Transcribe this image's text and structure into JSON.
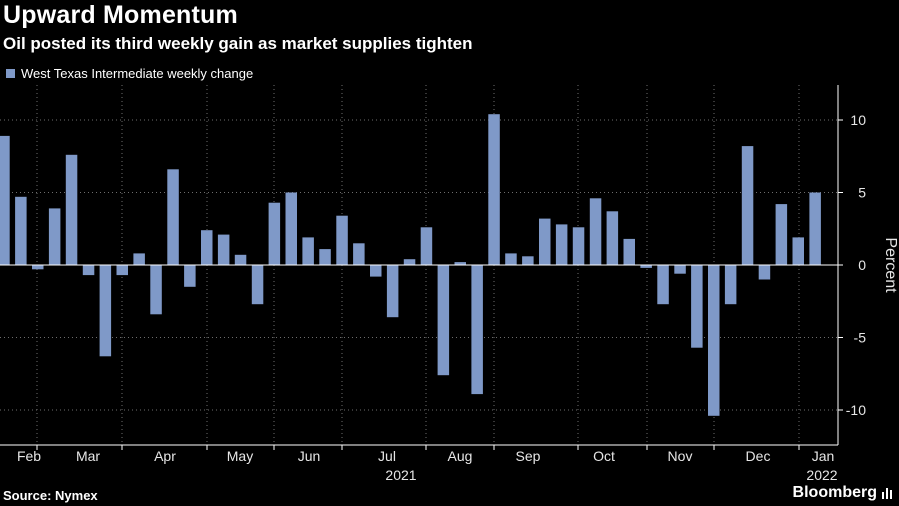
{
  "title": "Upward Momentum",
  "subtitle": "Oil posted its third weekly gain as market supplies tighten",
  "source": "Source: Nymex",
  "brand": "Bloomberg",
  "colors": {
    "bar": "#7f99c8",
    "background": "#000000",
    "grid": "#6e6e6e"
  },
  "chart_data": {
    "type": "bar",
    "series": [
      {
        "name": "West Texas Intermediate weekly change",
        "values": [
          8.9,
          4.7,
          -0.3,
          3.9,
          7.6,
          -0.7,
          -6.3,
          -0.7,
          0.8,
          -3.4,
          6.6,
          -1.5,
          2.4,
          2.1,
          0.7,
          -2.7,
          4.3,
          5.0,
          1.9,
          1.1,
          3.4,
          1.5,
          -0.8,
          -3.6,
          0.4,
          2.6,
          -7.6,
          0.2,
          -8.9,
          10.4,
          0.8,
          0.6,
          3.2,
          2.8,
          2.6,
          4.6,
          3.7,
          1.8,
          -0.2,
          -2.7,
          -0.6,
          -5.7,
          -10.4,
          -2.7,
          8.2,
          -1.0,
          4.2,
          1.9,
          5.0
        ]
      }
    ],
    "month_ticks": [
      "Feb",
      "Mar",
      "Apr",
      "May",
      "Jun",
      "Jul",
      "Aug",
      "Sep",
      "Oct",
      "Nov",
      "Dec",
      "Jan"
    ],
    "year_labels": [
      "2021",
      "2022"
    ],
    "ylabel": "Percent",
    "y_ticks": [
      10,
      5,
      0,
      -5,
      -10
    ],
    "y_tick_labels": [
      "10",
      "5",
      "0",
      "-5",
      "-10"
    ],
    "ylim": [
      -12.5,
      12.5
    ],
    "grid": true,
    "legend": "top-left"
  }
}
